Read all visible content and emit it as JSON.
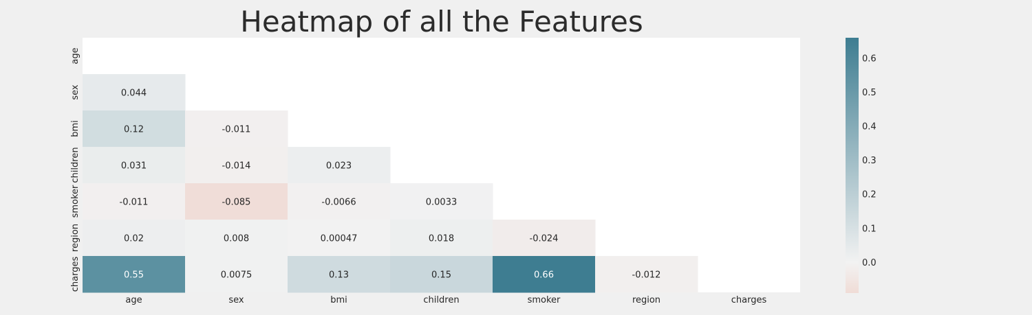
{
  "chart_data": {
    "type": "heatmap",
    "title": "Heatmap of all the Features",
    "rows": [
      "age",
      "sex",
      "bmi",
      "children",
      "smoker",
      "region",
      "charges"
    ],
    "columns": [
      "age",
      "sex",
      "bmi",
      "children",
      "smoker",
      "region",
      "charges"
    ],
    "mask": "upper-triangle-including-diagonal",
    "cells": [
      {
        "row": "sex",
        "col": "age",
        "value": 0.044,
        "label": "0.044"
      },
      {
        "row": "bmi",
        "col": "age",
        "value": 0.12,
        "label": "0.12"
      },
      {
        "row": "bmi",
        "col": "sex",
        "value": -0.011,
        "label": "-0.011"
      },
      {
        "row": "children",
        "col": "age",
        "value": 0.031,
        "label": "0.031"
      },
      {
        "row": "children",
        "col": "sex",
        "value": -0.014,
        "label": "-0.014"
      },
      {
        "row": "children",
        "col": "bmi",
        "value": 0.023,
        "label": "0.023"
      },
      {
        "row": "smoker",
        "col": "age",
        "value": -0.011,
        "label": "-0.011"
      },
      {
        "row": "smoker",
        "col": "sex",
        "value": -0.085,
        "label": "-0.085"
      },
      {
        "row": "smoker",
        "col": "bmi",
        "value": -0.0066,
        "label": "-0.0066"
      },
      {
        "row": "smoker",
        "col": "children",
        "value": 0.0033,
        "label": "0.0033"
      },
      {
        "row": "region",
        "col": "age",
        "value": 0.02,
        "label": "0.02"
      },
      {
        "row": "region",
        "col": "sex",
        "value": 0.008,
        "label": "0.008"
      },
      {
        "row": "region",
        "col": "bmi",
        "value": 0.00047,
        "label": "0.00047"
      },
      {
        "row": "region",
        "col": "children",
        "value": 0.018,
        "label": "0.018"
      },
      {
        "row": "region",
        "col": "smoker",
        "value": -0.024,
        "label": "-0.024"
      },
      {
        "row": "charges",
        "col": "age",
        "value": 0.55,
        "label": "0.55"
      },
      {
        "row": "charges",
        "col": "sex",
        "value": 0.0075,
        "label": "0.0075"
      },
      {
        "row": "charges",
        "col": "bmi",
        "value": 0.13,
        "label": "0.13"
      },
      {
        "row": "charges",
        "col": "children",
        "value": 0.15,
        "label": "0.15"
      },
      {
        "row": "charges",
        "col": "smoker",
        "value": 0.66,
        "label": "0.66"
      },
      {
        "row": "charges",
        "col": "region",
        "value": -0.012,
        "label": "-0.012"
      }
    ],
    "colorbar": {
      "range": [
        -0.09,
        0.66
      ],
      "ticks": [
        0.0,
        0.1,
        0.2,
        0.3,
        0.4,
        0.5,
        0.6
      ],
      "tick_labels": [
        "0.0",
        "0.1",
        "0.2",
        "0.3",
        "0.4",
        "0.5",
        "0.6"
      ],
      "colors": {
        "negative": "#f0dcd6",
        "neutral": "#f2f2f2",
        "positive": "#3e7d91"
      }
    },
    "background": "#f0f0f0",
    "masked_area_color": "#ffffff",
    "grid": false,
    "legend": "colorbar-right"
  }
}
